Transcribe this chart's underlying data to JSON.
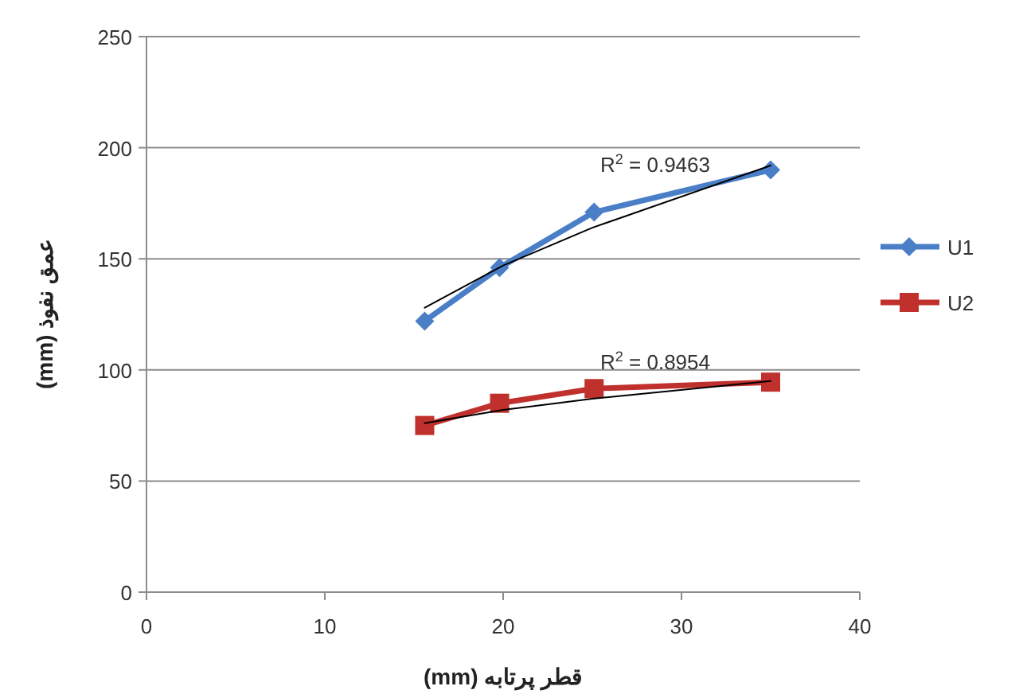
{
  "chart_data": {
    "type": "line",
    "xlabel": "قطر پرتابه (mm)",
    "ylabel": "عمق نفوذ (mm)",
    "xlim": [
      0,
      40
    ],
    "xticks": [
      0,
      10,
      20,
      30,
      40
    ],
    "ylim": [
      0,
      250
    ],
    "yticks": [
      0,
      50,
      100,
      150,
      200,
      250
    ],
    "grid": "y",
    "legend": "right",
    "line_style": "solid",
    "series": [
      {
        "name": "U1",
        "color": "#4a7fc8",
        "marker": "diamond",
        "x": [
          15.6,
          19.8,
          25.1,
          35
        ],
        "values": [
          122,
          146,
          171,
          190
        ]
      },
      {
        "name": "U2",
        "color": "#c0302c",
        "marker": "square",
        "x": [
          15.6,
          19.8,
          25.1,
          35
        ],
        "values": [
          75,
          85,
          91.6,
          94.5
        ]
      },
      {
        "type": "line",
        "color": "#000000",
        "marker": "none",
        "x": [
          15.6,
          20,
          25,
          35
        ],
        "values": [
          128,
          147,
          164,
          192
        ]
      },
      {
        "type": "line",
        "color": "#000000",
        "marker": "none",
        "x": [
          15.6,
          20,
          25,
          35
        ],
        "values": [
          76,
          82,
          87,
          95
        ]
      }
    ],
    "annotations": [
      "R$^{2}$ = 0.9463",
      "R$^{2}$ = 0.8954"
    ]
  }
}
